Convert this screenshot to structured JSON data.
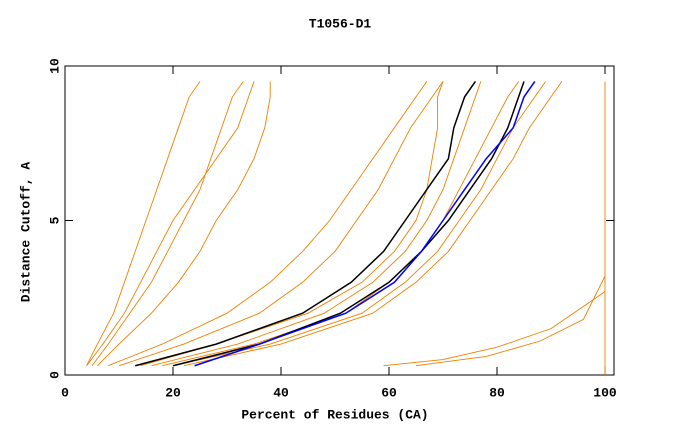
{
  "chart_data": {
    "type": "line",
    "title": "T1056-D1",
    "x_label": "Percent of Residues (CA)",
    "y_label": "Distance Cutoff, A",
    "xlim": [
      0,
      100
    ],
    "xticks": [
      0,
      20,
      40,
      60,
      80,
      100
    ],
    "ylim": [
      0,
      10
    ],
    "yticks": [
      0,
      5,
      10
    ],
    "series": [
      {
        "color": "#f08000",
        "x": [
          4,
          6,
          9,
          11,
          13,
          15,
          17,
          19,
          21,
          23,
          25
        ],
        "values": [
          0.3,
          1,
          2,
          3,
          4,
          5,
          6,
          7,
          8,
          9,
          9.5
        ]
      },
      {
        "color": "#f08000",
        "x": [
          5,
          8,
          12,
          16,
          19,
          22,
          25,
          27,
          29,
          31,
          33
        ],
        "values": [
          0.3,
          1,
          2,
          3,
          4,
          5,
          6,
          7,
          8,
          9,
          9.5
        ]
      },
      {
        "color": "#f08000",
        "x": [
          4,
          7,
          11,
          14,
          17,
          20,
          24,
          28,
          32,
          34,
          35
        ],
        "values": [
          0.3,
          1,
          2,
          3,
          4,
          5,
          6,
          7,
          8,
          9,
          9.5
        ]
      },
      {
        "color": "#f08000",
        "x": [
          6,
          10,
          16,
          21,
          25,
          28,
          32,
          35,
          37,
          38,
          38
        ],
        "values": [
          0.3,
          1,
          2,
          3,
          4,
          5,
          6,
          7,
          8,
          9,
          9.5
        ]
      },
      {
        "color": "#f08000",
        "x": [
          8,
          18,
          30,
          38,
          44,
          49,
          53,
          57,
          61,
          65,
          67
        ],
        "values": [
          0.3,
          1,
          2,
          3,
          4,
          5,
          6,
          7,
          8,
          9,
          9.5
        ]
      },
      {
        "color": "#f08000",
        "x": [
          10,
          22,
          36,
          44,
          50,
          54,
          58,
          61,
          64,
          68,
          70
        ],
        "values": [
          0.3,
          1,
          2,
          3,
          4,
          5,
          6,
          7,
          8,
          9,
          9.5
        ]
      },
      {
        "color": "#f08000",
        "x": [
          14,
          28,
          45,
          55,
          61,
          65,
          67,
          68,
          69,
          69,
          70
        ],
        "values": [
          0.3,
          1,
          2,
          3,
          4,
          5,
          6,
          7,
          8,
          9,
          9.5
        ]
      },
      {
        "color": "#f08000",
        "x": [
          16,
          32,
          48,
          57,
          63,
          67,
          70,
          72,
          74,
          76,
          77
        ],
        "values": [
          0.3,
          1,
          2,
          3,
          4,
          5,
          6,
          7,
          8,
          9,
          9.5
        ]
      },
      {
        "color": "#f08000",
        "x": [
          18,
          35,
          52,
          60,
          66,
          70,
          73,
          76,
          79,
          82,
          84
        ],
        "values": [
          0.3,
          1,
          2,
          3,
          4,
          5,
          6,
          7,
          8,
          9,
          9.5
        ]
      },
      {
        "color": "#f08000",
        "x": [
          20,
          38,
          55,
          63,
          69,
          73,
          77,
          80,
          83,
          87,
          89
        ],
        "values": [
          0.3,
          1,
          2,
          3,
          4,
          5,
          6,
          7,
          8,
          9,
          9.5
        ]
      },
      {
        "color": "#f08000",
        "x": [
          22,
          40,
          57,
          65,
          71,
          75,
          79,
          83,
          86,
          90,
          92
        ],
        "values": [
          0.3,
          1,
          2,
          3,
          4,
          5,
          6,
          7,
          8,
          9,
          9.5
        ]
      },
      {
        "color": "#f08000",
        "x": [
          59,
          70,
          80,
          90,
          100
        ],
        "values": [
          0.3,
          0.5,
          0.9,
          1.5,
          2.7
        ]
      },
      {
        "color": "#f08000",
        "x": [
          65,
          78,
          88,
          96,
          100
        ],
        "values": [
          0.3,
          0.6,
          1.1,
          1.8,
          3.2
        ]
      },
      {
        "color": "#f08000",
        "x": [
          100,
          100
        ],
        "values": [
          0,
          9.5
        ]
      },
      {
        "color": "#000000",
        "x": [
          13,
          28,
          44,
          53,
          59,
          63,
          67,
          71,
          72,
          74,
          76
        ],
        "values": [
          0.3,
          1,
          2,
          3,
          4,
          5,
          6,
          7,
          8,
          9,
          9.5
        ]
      },
      {
        "color": "#000000",
        "x": [
          20,
          36,
          51,
          60,
          66,
          71,
          75,
          79,
          82,
          84,
          85
        ],
        "values": [
          0.3,
          1,
          2,
          3,
          4,
          5,
          6,
          7,
          8,
          9,
          9.5
        ]
      },
      {
        "color": "#0000ff",
        "x": [
          24,
          36,
          52,
          61,
          66,
          70,
          74,
          78,
          83,
          85,
          87
        ],
        "values": [
          0.3,
          1,
          2,
          3,
          4,
          5,
          6,
          7,
          8,
          9,
          9.5
        ]
      }
    ]
  }
}
